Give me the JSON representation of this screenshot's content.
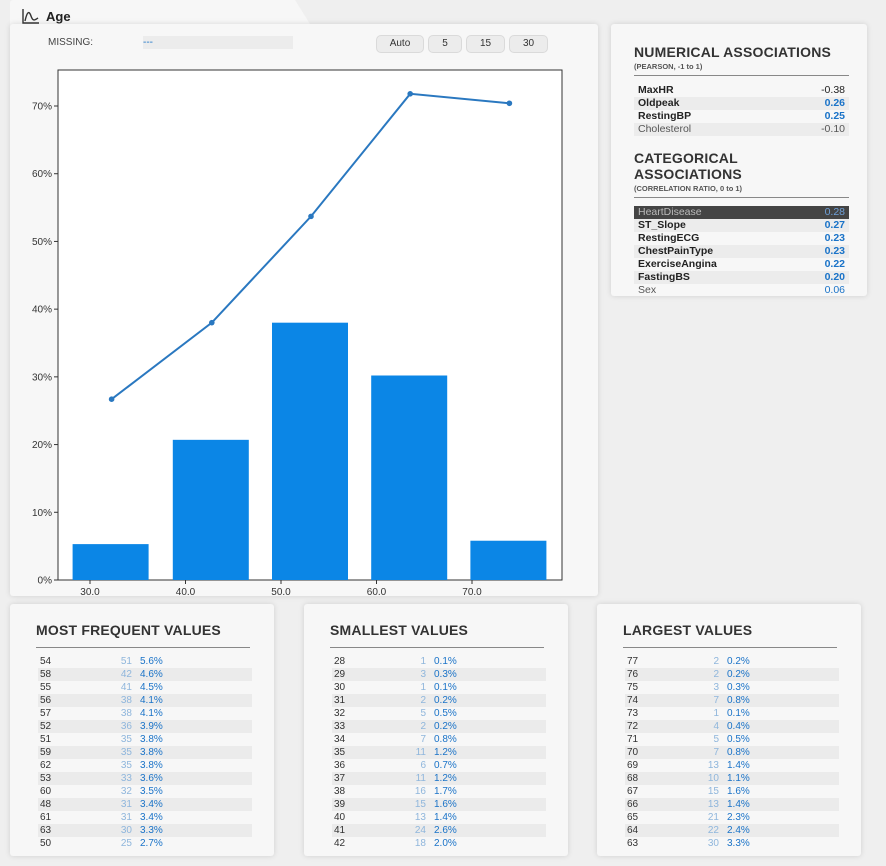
{
  "title": "Age",
  "missing": {
    "label": "MISSING:",
    "value": "---"
  },
  "bins_buttons": [
    "Auto",
    "5",
    "15",
    "30"
  ],
  "chart_data": {
    "type": "bar",
    "categories": [
      "30.0",
      "40.0",
      "50.0",
      "60.0",
      "70.0"
    ],
    "x_ticks": [
      "30.0",
      "40.0",
      "50.0",
      "60.0",
      "70.0"
    ],
    "bar_values": [
      5.3,
      20.7,
      38.0,
      30.2,
      5.8
    ],
    "line_values": [
      26.7,
      38.0,
      53.7,
      71.8,
      70.4
    ],
    "y_ticks": [
      "0%",
      "10%",
      "20%",
      "30%",
      "40%",
      "50%",
      "60%",
      "70%"
    ],
    "ylim": [
      0,
      70
    ],
    "bar_color": "#0b86e6",
    "line_color": "#2a78c0"
  },
  "numerical": {
    "title": "NUMERICAL ASSOCIATIONS",
    "subtitle": "(PEARSON, -1 to 1)",
    "rows": [
      {
        "name": "MaxHR",
        "value": "-0.38"
      },
      {
        "name": "Oldpeak",
        "value": "0.26"
      },
      {
        "name": "RestingBP",
        "value": "0.25"
      },
      {
        "name": "Cholesterol",
        "value": "-0.10"
      }
    ]
  },
  "categorical": {
    "title": "CATEGORICAL ASSOCIATIONS",
    "subtitle": "(CORRELATION RATIO, 0 to 1)",
    "rows": [
      {
        "name": "HeartDisease",
        "value": "0.28"
      },
      {
        "name": "ST_Slope",
        "value": "0.27"
      },
      {
        "name": "RestingECG",
        "value": "0.23"
      },
      {
        "name": "ChestPainType",
        "value": "0.23"
      },
      {
        "name": "ExerciseAngina",
        "value": "0.22"
      },
      {
        "name": "FastingBS",
        "value": "0.20"
      },
      {
        "name": "Sex",
        "value": "0.06"
      }
    ]
  },
  "most_frequent": {
    "title": "MOST FREQUENT VALUES",
    "rows": [
      [
        "54",
        "51",
        "5.6%"
      ],
      [
        "58",
        "42",
        "4.6%"
      ],
      [
        "55",
        "41",
        "4.5%"
      ],
      [
        "56",
        "38",
        "4.1%"
      ],
      [
        "57",
        "38",
        "4.1%"
      ],
      [
        "52",
        "36",
        "3.9%"
      ],
      [
        "51",
        "35",
        "3.8%"
      ],
      [
        "59",
        "35",
        "3.8%"
      ],
      [
        "62",
        "35",
        "3.8%"
      ],
      [
        "53",
        "33",
        "3.6%"
      ],
      [
        "60",
        "32",
        "3.5%"
      ],
      [
        "48",
        "31",
        "3.4%"
      ],
      [
        "61",
        "31",
        "3.4%"
      ],
      [
        "63",
        "30",
        "3.3%"
      ],
      [
        "50",
        "25",
        "2.7%"
      ]
    ]
  },
  "smallest": {
    "title": "SMALLEST VALUES",
    "rows": [
      [
        "28",
        "1",
        "0.1%"
      ],
      [
        "29",
        "3",
        "0.3%"
      ],
      [
        "30",
        "1",
        "0.1%"
      ],
      [
        "31",
        "2",
        "0.2%"
      ],
      [
        "32",
        "5",
        "0.5%"
      ],
      [
        "33",
        "2",
        "0.2%"
      ],
      [
        "34",
        "7",
        "0.8%"
      ],
      [
        "35",
        "11",
        "1.2%"
      ],
      [
        "36",
        "6",
        "0.7%"
      ],
      [
        "37",
        "11",
        "1.2%"
      ],
      [
        "38",
        "16",
        "1.7%"
      ],
      [
        "39",
        "15",
        "1.6%"
      ],
      [
        "40",
        "13",
        "1.4%"
      ],
      [
        "41",
        "24",
        "2.6%"
      ],
      [
        "42",
        "18",
        "2.0%"
      ]
    ]
  },
  "largest": {
    "title": "LARGEST VALUES",
    "rows": [
      [
        "77",
        "2",
        "0.2%"
      ],
      [
        "76",
        "2",
        "0.2%"
      ],
      [
        "75",
        "3",
        "0.3%"
      ],
      [
        "74",
        "7",
        "0.8%"
      ],
      [
        "73",
        "1",
        "0.1%"
      ],
      [
        "72",
        "4",
        "0.4%"
      ],
      [
        "71",
        "5",
        "0.5%"
      ],
      [
        "70",
        "7",
        "0.8%"
      ],
      [
        "69",
        "13",
        "1.4%"
      ],
      [
        "68",
        "10",
        "1.1%"
      ],
      [
        "67",
        "15",
        "1.6%"
      ],
      [
        "66",
        "13",
        "1.4%"
      ],
      [
        "65",
        "21",
        "2.3%"
      ],
      [
        "64",
        "22",
        "2.4%"
      ],
      [
        "63",
        "30",
        "3.3%"
      ]
    ]
  }
}
